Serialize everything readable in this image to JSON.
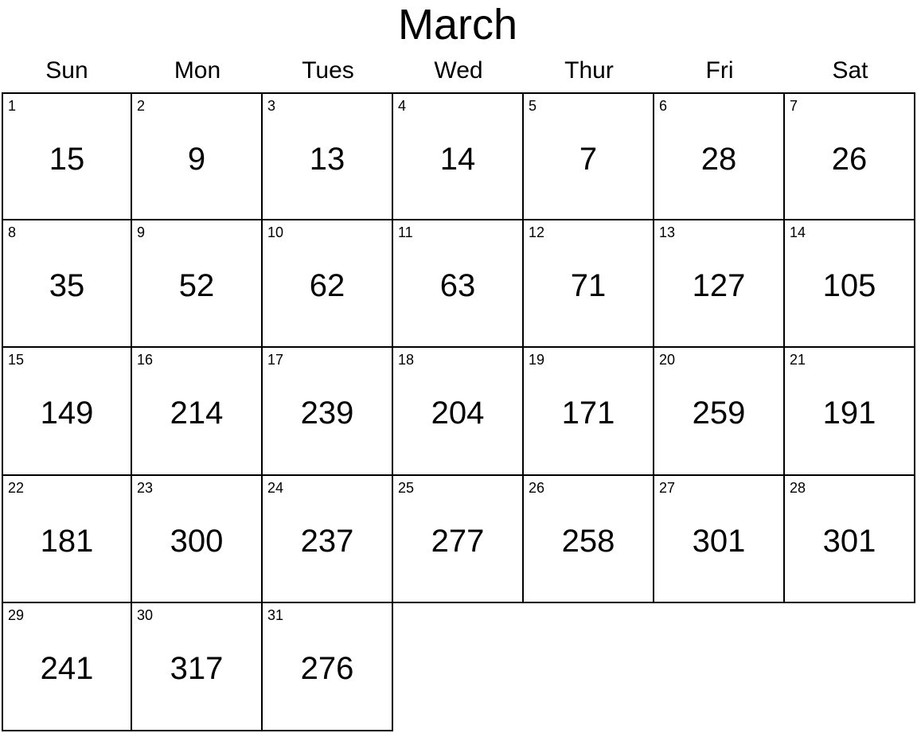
{
  "month": "March",
  "weekdays": [
    "Sun",
    "Mon",
    "Tues",
    "Wed",
    "Thur",
    "Fri",
    "Sat"
  ],
  "days": [
    {
      "day": "1",
      "value": "15"
    },
    {
      "day": "2",
      "value": "9"
    },
    {
      "day": "3",
      "value": "13"
    },
    {
      "day": "4",
      "value": "14"
    },
    {
      "day": "5",
      "value": "7"
    },
    {
      "day": "6",
      "value": "28"
    },
    {
      "day": "7",
      "value": "26"
    },
    {
      "day": "8",
      "value": "35"
    },
    {
      "day": "9",
      "value": "52"
    },
    {
      "day": "10",
      "value": "62"
    },
    {
      "day": "11",
      "value": "63"
    },
    {
      "day": "12",
      "value": "71"
    },
    {
      "day": "13",
      "value": "127"
    },
    {
      "day": "14",
      "value": "105"
    },
    {
      "day": "15",
      "value": "149"
    },
    {
      "day": "16",
      "value": "214"
    },
    {
      "day": "17",
      "value": "239"
    },
    {
      "day": "18",
      "value": "204"
    },
    {
      "day": "19",
      "value": "171"
    },
    {
      "day": "20",
      "value": "259"
    },
    {
      "day": "21",
      "value": "191"
    },
    {
      "day": "22",
      "value": "181"
    },
    {
      "day": "23",
      "value": "300"
    },
    {
      "day": "24",
      "value": "237"
    },
    {
      "day": "25",
      "value": "277"
    },
    {
      "day": "26",
      "value": "258"
    },
    {
      "day": "27",
      "value": "301"
    },
    {
      "day": "28",
      "value": "301"
    },
    {
      "day": "29",
      "value": "241"
    },
    {
      "day": "30",
      "value": "317"
    },
    {
      "day": "31",
      "value": "276"
    }
  ]
}
